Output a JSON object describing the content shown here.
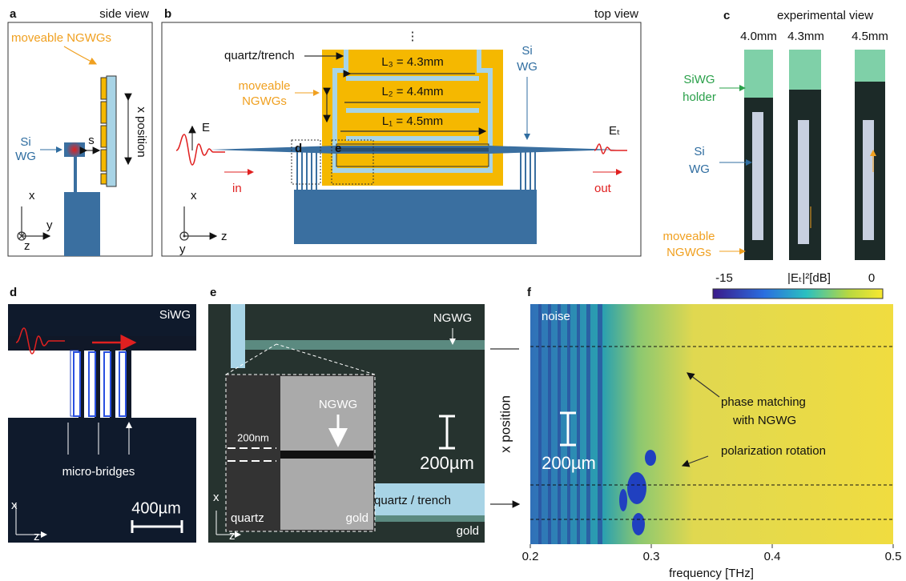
{
  "panel_a": {
    "label": "a",
    "title": "side view",
    "moveable": "moveable NGWGs",
    "si": "Si",
    "wg": "WG",
    "s": "s",
    "x_position": "x position",
    "x": "x",
    "y": "y",
    "z": "z"
  },
  "panel_b": {
    "label": "b",
    "title": "top view",
    "dots": "⋮",
    "quartz": "quartz/trench",
    "moveable": "moveable",
    "ngwgs": "NGWGs",
    "l3": "L₃ = 4.3mm",
    "l2": "L₂ = 4.4mm",
    "l1": "L₁ = 4.5mm",
    "si": "Si",
    "wg": "WG",
    "e_in": "E",
    "e_out": "Eₜ",
    "in": "in",
    "out": "out",
    "box_d": "d",
    "box_e": "e",
    "x": "x",
    "z": "z",
    "y": "y"
  },
  "panel_c": {
    "label": "c",
    "title": "experimental view",
    "positions": [
      "4.0mm",
      "4.3mm",
      "4.5mm"
    ],
    "siwg": "SiWG",
    "holder": "holder",
    "si": "Si",
    "wg": "WG",
    "moveable": "moveable",
    "ngwgs": "NGWGs"
  },
  "panel_d": {
    "label": "d",
    "siwg": "SiWG",
    "bridges": "micro-bridges",
    "x": "x",
    "z": "z",
    "scale": "400µm"
  },
  "panel_e": {
    "label": "e",
    "ngwg_top": "NGWG",
    "ngwg_inset": "NGWG",
    "gap": "200nm",
    "quartz": "quartz",
    "gold_inset": "gold",
    "scale": "200µm",
    "trench": "quartz / trench",
    "gold": "gold",
    "x": "x",
    "z": "z"
  },
  "panel_f": {
    "label": "f",
    "colorbar": {
      "label": "|Eₜ|²[dB]",
      "min": -15,
      "max": 0
    },
    "noise": "noise",
    "phase1": "phase matching",
    "phase2": "with NGWG",
    "polarization": "polarization rotation",
    "scale": "200µm",
    "ylabel": "x position",
    "xlabel": "frequency [THz]",
    "xlim": [
      0.2,
      0.5
    ],
    "xticks": [
      0.2,
      0.3,
      0.4,
      0.5
    ]
  }
}
